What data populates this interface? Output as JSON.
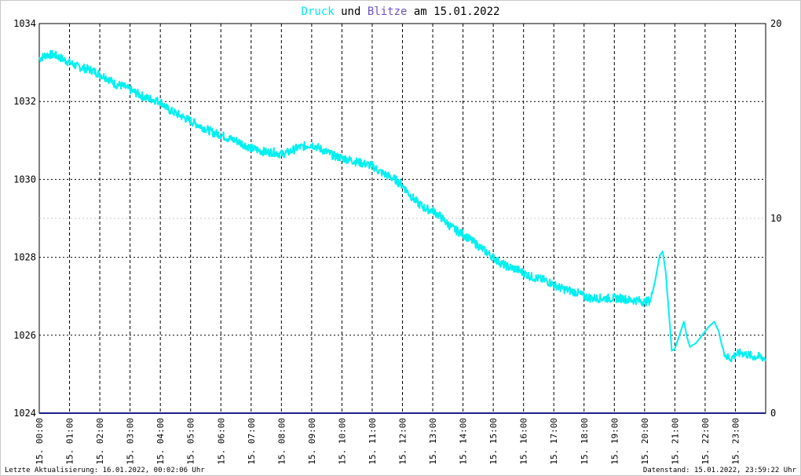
{
  "chart_data": {
    "type": "line",
    "title": {
      "parts": [
        {
          "text": "Druck",
          "color": "#00e8ee"
        },
        {
          "text": " und ",
          "color": "#000000"
        },
        {
          "text": "Blitze",
          "color": "#6a52c8"
        },
        {
          "text": " am 15.01.2022",
          "color": "#000000"
        }
      ]
    },
    "x_range_hours": [
      0,
      24
    ],
    "x_tick_labels": [
      "15. 00:00",
      "15. 01:00",
      "15. 02:00",
      "15. 03:00",
      "15. 04:00",
      "15. 05:00",
      "15. 06:00",
      "15. 07:00",
      "15. 08:00",
      "15. 09:00",
      "15. 10:00",
      "15. 11:00",
      "15. 12:00",
      "15. 13:00",
      "15. 14:00",
      "15. 15:00",
      "15. 16:00",
      "15. 17:00",
      "15. 18:00",
      "15. 19:00",
      "15. 20:00",
      "15. 21:00",
      "15. 22:00",
      "15. 23:00"
    ],
    "y_left": {
      "min": 1024,
      "max": 1034,
      "ticks": [
        "1024",
        "1026",
        "1028",
        "1030",
        "1032",
        "1034"
      ]
    },
    "y_right": {
      "min": 0,
      "max": 20,
      "ticks": [
        "0",
        "10",
        "20"
      ]
    },
    "grid": true,
    "series": [
      {
        "name": "Druck",
        "axis": "left",
        "color": "#00f0f0",
        "points": [
          [
            0.0,
            1033.1
          ],
          [
            0.25,
            1033.2
          ],
          [
            0.5,
            1033.2
          ],
          [
            0.75,
            1033.1
          ],
          [
            1.0,
            1033.0
          ],
          [
            1.25,
            1032.9
          ],
          [
            1.5,
            1032.85
          ],
          [
            1.75,
            1032.8
          ],
          [
            2.0,
            1032.7
          ],
          [
            2.25,
            1032.6
          ],
          [
            2.5,
            1032.45
          ],
          [
            2.75,
            1032.4
          ],
          [
            3.0,
            1032.3
          ],
          [
            3.25,
            1032.2
          ],
          [
            3.5,
            1032.1
          ],
          [
            3.75,
            1032.05
          ],
          [
            4.0,
            1032.0
          ],
          [
            4.25,
            1031.8
          ],
          [
            4.5,
            1031.7
          ],
          [
            4.75,
            1031.6
          ],
          [
            5.0,
            1031.5
          ],
          [
            5.25,
            1031.4
          ],
          [
            5.5,
            1031.3
          ],
          [
            5.75,
            1031.2
          ],
          [
            6.0,
            1031.15
          ],
          [
            6.25,
            1031.05
          ],
          [
            6.5,
            1031.0
          ],
          [
            6.75,
            1030.9
          ],
          [
            7.0,
            1030.8
          ],
          [
            7.25,
            1030.75
          ],
          [
            7.5,
            1030.7
          ],
          [
            7.75,
            1030.7
          ],
          [
            8.0,
            1030.65
          ],
          [
            8.25,
            1030.7
          ],
          [
            8.5,
            1030.8
          ],
          [
            8.75,
            1030.85
          ],
          [
            9.0,
            1030.9
          ],
          [
            9.25,
            1030.8
          ],
          [
            9.5,
            1030.7
          ],
          [
            9.75,
            1030.6
          ],
          [
            10.0,
            1030.55
          ],
          [
            10.25,
            1030.5
          ],
          [
            10.5,
            1030.45
          ],
          [
            10.75,
            1030.4
          ],
          [
            11.0,
            1030.35
          ],
          [
            11.25,
            1030.2
          ],
          [
            11.5,
            1030.1
          ],
          [
            11.75,
            1030.0
          ],
          [
            12.0,
            1029.85
          ],
          [
            12.25,
            1029.6
          ],
          [
            12.5,
            1029.4
          ],
          [
            12.75,
            1029.25
          ],
          [
            13.0,
            1029.2
          ],
          [
            13.25,
            1029.05
          ],
          [
            13.5,
            1028.85
          ],
          [
            13.75,
            1028.7
          ],
          [
            14.0,
            1028.6
          ],
          [
            14.25,
            1028.45
          ],
          [
            14.5,
            1028.3
          ],
          [
            14.75,
            1028.15
          ],
          [
            15.0,
            1028.0
          ],
          [
            15.25,
            1027.85
          ],
          [
            15.5,
            1027.75
          ],
          [
            15.75,
            1027.7
          ],
          [
            16.0,
            1027.6
          ],
          [
            16.25,
            1027.5
          ],
          [
            16.5,
            1027.45
          ],
          [
            16.75,
            1027.4
          ],
          [
            17.0,
            1027.3
          ],
          [
            17.25,
            1027.2
          ],
          [
            17.5,
            1027.15
          ],
          [
            17.75,
            1027.1
          ],
          [
            18.0,
            1027.0
          ],
          [
            18.25,
            1026.95
          ],
          [
            18.5,
            1026.95
          ],
          [
            18.75,
            1026.95
          ],
          [
            19.0,
            1026.95
          ],
          [
            19.25,
            1026.95
          ],
          [
            19.5,
            1026.9
          ],
          [
            19.75,
            1026.9
          ],
          [
            20.0,
            1026.85
          ],
          [
            20.2,
            1026.9
          ],
          [
            20.35,
            1027.4
          ],
          [
            20.5,
            1028.05
          ],
          [
            20.6,
            1028.15
          ],
          [
            20.7,
            1027.6
          ],
          [
            20.8,
            1026.6
          ],
          [
            20.9,
            1025.6
          ],
          [
            21.0,
            1025.65
          ],
          [
            21.15,
            1026.0
          ],
          [
            21.3,
            1026.35
          ],
          [
            21.4,
            1025.95
          ],
          [
            21.5,
            1025.7
          ],
          [
            21.7,
            1025.8
          ],
          [
            21.9,
            1026.0
          ],
          [
            22.1,
            1026.2
          ],
          [
            22.3,
            1026.35
          ],
          [
            22.45,
            1026.1
          ],
          [
            22.55,
            1025.75
          ],
          [
            22.7,
            1025.45
          ],
          [
            22.85,
            1025.4
          ],
          [
            23.0,
            1025.5
          ],
          [
            23.2,
            1025.55
          ],
          [
            23.4,
            1025.5
          ],
          [
            23.6,
            1025.45
          ],
          [
            23.8,
            1025.45
          ],
          [
            24.0,
            1025.4
          ]
        ]
      },
      {
        "name": "Blitze",
        "axis": "right",
        "color": "#1e1e8c",
        "points": [
          [
            0,
            0
          ],
          [
            24,
            0
          ]
        ]
      }
    ],
    "footer_left": "Letzte Aktualisierung: 16.01.2022, 00:02:06 Uhr",
    "footer_right": "Datenstand: 15.01.2022, 23:59:22 Uhr"
  }
}
